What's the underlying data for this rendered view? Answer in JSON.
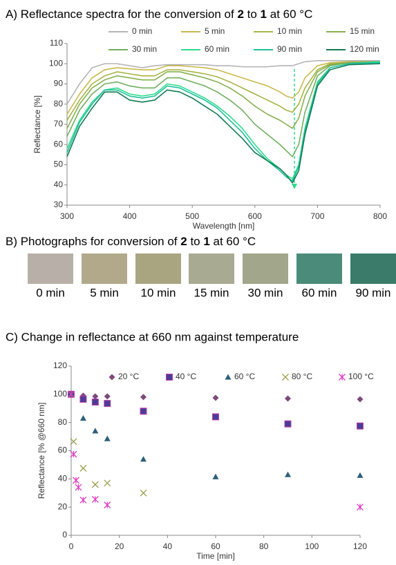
{
  "chart_data": [
    {
      "type": "line",
      "title_parts": [
        "A) Reflectance spectra for the conversion of ",
        "2",
        " to ",
        "1",
        " at 60 °C"
      ],
      "x_label": "Wavelength [nm]",
      "y_label": "Reflectance [%]",
      "xlim": [
        300,
        800
      ],
      "xticks": [
        300,
        400,
        500,
        600,
        700,
        800
      ],
      "ylim": [
        30,
        110
      ],
      "yticks": [
        30,
        40,
        50,
        60,
        70,
        80,
        90,
        100,
        110
      ],
      "grid": false,
      "x": [
        300,
        320,
        340,
        360,
        380,
        400,
        420,
        440,
        460,
        480,
        500,
        520,
        540,
        560,
        580,
        600,
        620,
        640,
        650,
        660,
        670,
        680,
        700,
        720,
        750,
        800
      ],
      "series": [
        {
          "name": "0 min",
          "color": "#b4b4b4",
          "values": [
            80,
            90,
            98,
            100,
            100,
            99,
            98,
            99,
            99.5,
            99.5,
            99.5,
            99.5,
            99,
            99,
            98.5,
            98.5,
            98.5,
            99,
            99,
            99,
            100,
            101,
            101.5,
            101.5,
            101.5,
            101.5
          ]
        },
        {
          "name": "5 min",
          "color": "#c9b94c",
          "values": [
            75,
            85,
            93,
            97,
            98,
            97.5,
            97,
            97,
            99,
            99,
            98.5,
            98,
            97,
            95,
            93,
            91,
            89,
            86,
            84,
            83,
            86,
            93,
            99,
            100.5,
            101,
            101
          ]
        },
        {
          "name": "10 min",
          "color": "#a6b444",
          "values": [
            72,
            82,
            90,
            94,
            96,
            95,
            94,
            94,
            97,
            97,
            96,
            95,
            93.5,
            91,
            88,
            85,
            82,
            79,
            77,
            76,
            80,
            88,
            97,
            100,
            100.5,
            101
          ]
        },
        {
          "name": "15 min",
          "color": "#86b04e",
          "values": [
            68,
            80,
            88,
            92,
            94,
            93,
            92,
            92,
            96,
            96,
            94.5,
            93,
            91,
            88,
            84,
            79,
            75,
            72,
            70,
            68,
            73,
            84,
            96,
            99.5,
            100.5,
            101
          ]
        },
        {
          "name": "30 min",
          "color": "#6fae5e",
          "values": [
            64,
            77,
            85,
            90,
            91,
            89,
            88,
            88,
            93,
            93,
            91,
            89,
            86,
            82,
            77,
            70,
            65,
            60,
            57,
            54,
            60,
            76,
            94,
            99,
            100.5,
            101
          ]
        },
        {
          "name": "60 min",
          "color": "#2ddc8a",
          "values": [
            58,
            72,
            81,
            87,
            88,
            85,
            84,
            85,
            90,
            89,
            86,
            83,
            79,
            74,
            68,
            60,
            53,
            48,
            45,
            43,
            50,
            68,
            91,
            98,
            100,
            101
          ]
        },
        {
          "name": "90 min",
          "color": "#1fbf9e",
          "values": [
            56,
            71,
            80,
            87,
            87,
            84,
            83,
            84,
            89,
            88,
            85,
            82,
            78,
            72,
            66,
            58,
            52,
            47,
            44,
            42,
            49,
            67,
            90,
            98,
            100,
            100.5
          ]
        },
        {
          "name": "120 min",
          "color": "#117a52",
          "values": [
            54,
            69,
            78,
            86,
            86,
            82,
            81,
            82,
            87,
            86,
            83,
            79,
            75,
            69,
            63,
            56,
            52,
            48,
            45,
            41,
            47,
            65,
            89,
            97,
            99.5,
            100
          ]
        }
      ]
    },
    {
      "type": "scatter",
      "title": "C) Change in reflectance at 660 nm against temperature",
      "x_label": "Time [min]",
      "y_label": "Reflectance [% @660 nm]",
      "xlim": [
        0,
        120
      ],
      "xticks": [
        0,
        20,
        40,
        60,
        80,
        100,
        120
      ],
      "ylim": [
        0,
        120
      ],
      "yticks": [
        0,
        20,
        40,
        60,
        80,
        100,
        120
      ],
      "grid": false,
      "series": [
        {
          "name": "20 °C",
          "color": "#7b4a7b",
          "marker": "diamond",
          "x": [
            0,
            5,
            10,
            15,
            30,
            60,
            90,
            120
          ],
          "values": [
            100,
            99,
            98.5,
            98.5,
            98,
            97.5,
            97,
            96.5
          ]
        },
        {
          "name": "40 °C",
          "color": "#4b3c9a",
          "marker": "square",
          "x": [
            0,
            5,
            10,
            15,
            30,
            60,
            90,
            120
          ],
          "values": [
            100,
            96.5,
            94.5,
            93.5,
            88,
            84,
            79,
            77.5
          ]
        },
        {
          "name": "60 °C",
          "color": "#2e5f7a",
          "marker": "triangle",
          "x": [
            0,
            5,
            10,
            15,
            30,
            60,
            90,
            120
          ],
          "values": [
            100,
            83,
            74,
            68.5,
            54,
            41.5,
            43,
            42.5
          ]
        },
        {
          "name": "80 °C",
          "color": "#9aa050",
          "marker": "x",
          "x": [
            0,
            1,
            5,
            10,
            15,
            30
          ],
          "values": [
            100,
            66.5,
            47.5,
            36,
            37,
            30
          ]
        },
        {
          "name": "100 °C",
          "color": "#e03cc0",
          "marker": "asterisk",
          "x": [
            0,
            1,
            2,
            3,
            5,
            10,
            15,
            120
          ],
          "values": [
            100,
            57.5,
            39,
            34,
            25,
            25.5,
            21.5,
            20
          ]
        }
      ]
    }
  ],
  "photographs": {
    "title_parts": [
      "B) Photographs for conversion of ",
      "2",
      " to ",
      "1",
      " at 60 °C"
    ],
    "labels": [
      "0 min",
      "5 min",
      "10 min",
      "15 min",
      "30 min",
      "60 min",
      "90 min"
    ],
    "colors": [
      "#b8b0a8",
      "#b1a98a",
      "#a9a581",
      "#a9aa92",
      "#a2a68a",
      "#4b8b79",
      "#3b7b69"
    ]
  }
}
